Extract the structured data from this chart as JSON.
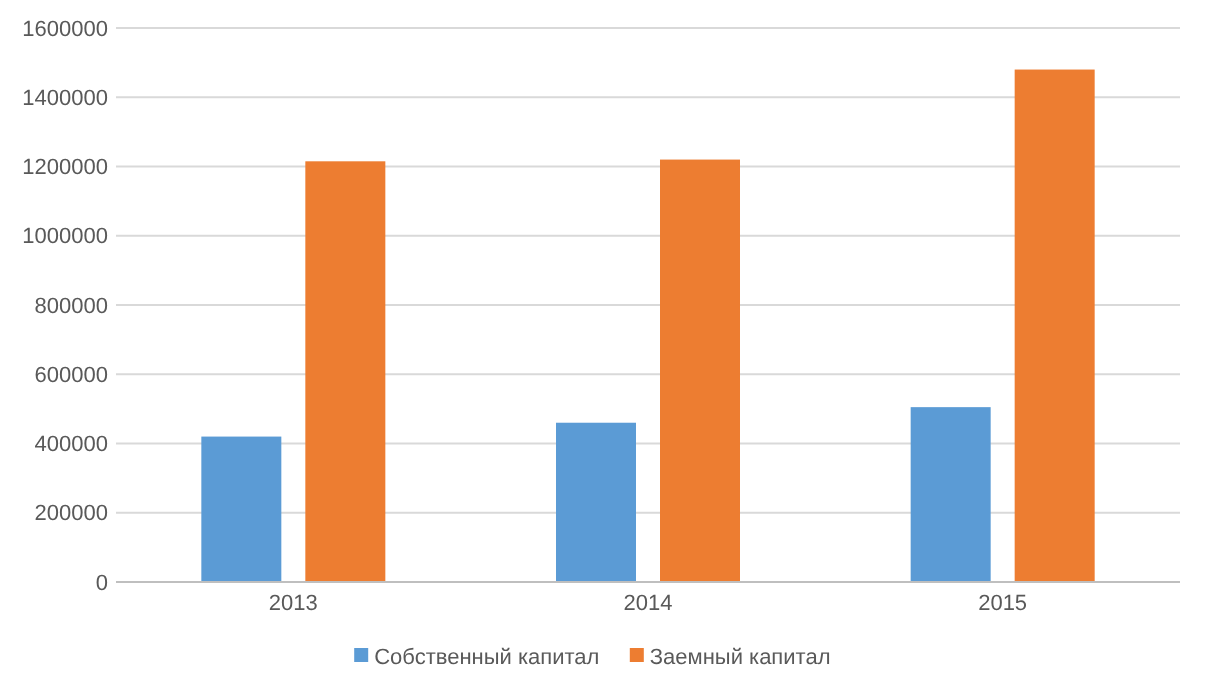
{
  "chart_data": {
    "type": "bar",
    "categories": [
      "2013",
      "2014",
      "2015"
    ],
    "series": [
      {
        "name": "Собственный капитал",
        "color": "#5b9bd5",
        "values": [
          420000,
          460000,
          505000
        ]
      },
      {
        "name": "Заемный капитал",
        "color": "#ed7d31",
        "values": [
          1215000,
          1220000,
          1480000
        ]
      }
    ],
    "ylim": [
      0,
      1600000
    ],
    "yticks": [
      0,
      200000,
      400000,
      600000,
      800000,
      1000000,
      1200000,
      1400000,
      1600000
    ],
    "grid": "y",
    "legend": "bottom"
  }
}
